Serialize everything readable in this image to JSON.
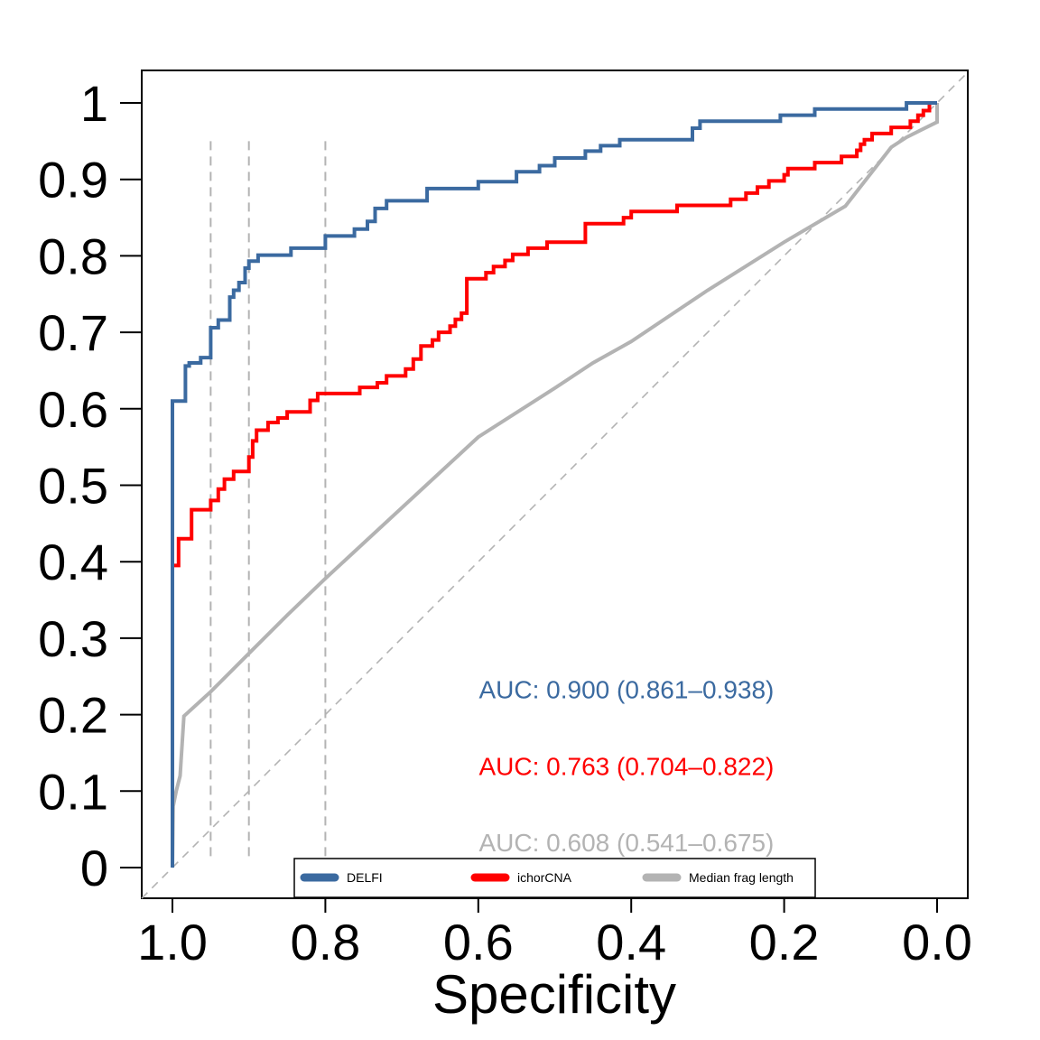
{
  "chart_data": {
    "type": "line",
    "xlabel": "Specificity",
    "ylabel": "",
    "xlim": [
      1.0,
      0.0
    ],
    "ylim": [
      0,
      1
    ],
    "x_reversed": true,
    "x_ticks": [
      1.0,
      0.8,
      0.6,
      0.4,
      0.2,
      0.0
    ],
    "x_tick_labels": [
      "1.0",
      "0.8",
      "0.6",
      "0.4",
      "0.2",
      "0.0"
    ],
    "y_ticks": [
      0,
      0.1,
      0.2,
      0.3,
      0.4,
      0.5,
      0.6,
      0.7,
      0.8,
      0.9,
      1
    ],
    "y_tick_labels": [
      "0",
      "0.1",
      "0.2",
      "0.3",
      "0.4",
      "0.5",
      "0.6",
      "0.7",
      "0.8",
      "0.9",
      "1"
    ],
    "reference_lines": {
      "diagonal": {
        "from": [
          1.0,
          0.0
        ],
        "to": [
          0.0,
          1.0
        ],
        "color": "#b3b3b3",
        "dashed": true
      },
      "vertical": [
        0.95,
        0.9,
        0.8
      ]
    },
    "legend": {
      "placement": "bottom-inside",
      "items": [
        "DELFI",
        "ichorCNA",
        "Median frag length"
      ]
    },
    "series": [
      {
        "name": "DELFI",
        "color": "#3b6aa0",
        "step": true,
        "points": [
          [
            1.0,
            0.0
          ],
          [
            1.0,
            0.61
          ],
          [
            0.983,
            0.61
          ],
          [
            0.983,
            0.656
          ],
          [
            0.978,
            0.656
          ],
          [
            0.978,
            0.66
          ],
          [
            0.963,
            0.66
          ],
          [
            0.963,
            0.667
          ],
          [
            0.95,
            0.667
          ],
          [
            0.95,
            0.706
          ],
          [
            0.94,
            0.706
          ],
          [
            0.94,
            0.716
          ],
          [
            0.925,
            0.716
          ],
          [
            0.925,
            0.746
          ],
          [
            0.92,
            0.746
          ],
          [
            0.92,
            0.755
          ],
          [
            0.913,
            0.755
          ],
          [
            0.913,
            0.765
          ],
          [
            0.905,
            0.765
          ],
          [
            0.905,
            0.784
          ],
          [
            0.9,
            0.784
          ],
          [
            0.9,
            0.793
          ],
          [
            0.888,
            0.793
          ],
          [
            0.888,
            0.801
          ],
          [
            0.845,
            0.801
          ],
          [
            0.845,
            0.81
          ],
          [
            0.8,
            0.81
          ],
          [
            0.8,
            0.826
          ],
          [
            0.762,
            0.826
          ],
          [
            0.762,
            0.835
          ],
          [
            0.745,
            0.835
          ],
          [
            0.745,
            0.845
          ],
          [
            0.735,
            0.845
          ],
          [
            0.735,
            0.862
          ],
          [
            0.72,
            0.862
          ],
          [
            0.72,
            0.872
          ],
          [
            0.667,
            0.872
          ],
          [
            0.667,
            0.888
          ],
          [
            0.6,
            0.888
          ],
          [
            0.6,
            0.897
          ],
          [
            0.55,
            0.897
          ],
          [
            0.55,
            0.91
          ],
          [
            0.52,
            0.91
          ],
          [
            0.52,
            0.918
          ],
          [
            0.5,
            0.918
          ],
          [
            0.5,
            0.928
          ],
          [
            0.46,
            0.928
          ],
          [
            0.46,
            0.937
          ],
          [
            0.44,
            0.937
          ],
          [
            0.44,
            0.944
          ],
          [
            0.415,
            0.944
          ],
          [
            0.415,
            0.952
          ],
          [
            0.32,
            0.952
          ],
          [
            0.32,
            0.967
          ],
          [
            0.31,
            0.967
          ],
          [
            0.31,
            0.976
          ],
          [
            0.205,
            0.976
          ],
          [
            0.205,
            0.984
          ],
          [
            0.16,
            0.984
          ],
          [
            0.16,
            0.992
          ],
          [
            0.04,
            0.992
          ],
          [
            0.04,
            1.0
          ],
          [
            0.0,
            1.0
          ]
        ]
      },
      {
        "name": "ichorCNA",
        "color": "#ff0000",
        "step": true,
        "points": [
          [
            1.0,
            0.0
          ],
          [
            1.0,
            0.395
          ],
          [
            0.992,
            0.395
          ],
          [
            0.992,
            0.43
          ],
          [
            0.975,
            0.43
          ],
          [
            0.975,
            0.468
          ],
          [
            0.95,
            0.468
          ],
          [
            0.95,
            0.48
          ],
          [
            0.94,
            0.48
          ],
          [
            0.94,
            0.495
          ],
          [
            0.932,
            0.495
          ],
          [
            0.932,
            0.508
          ],
          [
            0.92,
            0.508
          ],
          [
            0.92,
            0.518
          ],
          [
            0.9,
            0.518
          ],
          [
            0.9,
            0.537
          ],
          [
            0.895,
            0.537
          ],
          [
            0.895,
            0.558
          ],
          [
            0.89,
            0.558
          ],
          [
            0.89,
            0.572
          ],
          [
            0.875,
            0.572
          ],
          [
            0.875,
            0.582
          ],
          [
            0.862,
            0.582
          ],
          [
            0.862,
            0.588
          ],
          [
            0.85,
            0.588
          ],
          [
            0.85,
            0.596
          ],
          [
            0.82,
            0.596
          ],
          [
            0.82,
            0.611
          ],
          [
            0.81,
            0.611
          ],
          [
            0.81,
            0.62
          ],
          [
            0.755,
            0.62
          ],
          [
            0.755,
            0.628
          ],
          [
            0.732,
            0.628
          ],
          [
            0.732,
            0.634
          ],
          [
            0.72,
            0.634
          ],
          [
            0.72,
            0.643
          ],
          [
            0.695,
            0.643
          ],
          [
            0.695,
            0.652
          ],
          [
            0.685,
            0.652
          ],
          [
            0.685,
            0.665
          ],
          [
            0.675,
            0.665
          ],
          [
            0.675,
            0.682
          ],
          [
            0.66,
            0.682
          ],
          [
            0.66,
            0.69
          ],
          [
            0.652,
            0.69
          ],
          [
            0.652,
            0.7
          ],
          [
            0.637,
            0.7
          ],
          [
            0.637,
            0.708
          ],
          [
            0.63,
            0.708
          ],
          [
            0.63,
            0.717
          ],
          [
            0.622,
            0.717
          ],
          [
            0.622,
            0.725
          ],
          [
            0.615,
            0.725
          ],
          [
            0.615,
            0.77
          ],
          [
            0.59,
            0.77
          ],
          [
            0.59,
            0.778
          ],
          [
            0.58,
            0.778
          ],
          [
            0.58,
            0.786
          ],
          [
            0.565,
            0.786
          ],
          [
            0.565,
            0.794
          ],
          [
            0.555,
            0.794
          ],
          [
            0.555,
            0.802
          ],
          [
            0.535,
            0.802
          ],
          [
            0.535,
            0.81
          ],
          [
            0.51,
            0.81
          ],
          [
            0.51,
            0.818
          ],
          [
            0.46,
            0.818
          ],
          [
            0.46,
            0.842
          ],
          [
            0.41,
            0.842
          ],
          [
            0.41,
            0.85
          ],
          [
            0.4,
            0.85
          ],
          [
            0.4,
            0.858
          ],
          [
            0.34,
            0.858
          ],
          [
            0.34,
            0.866
          ],
          [
            0.27,
            0.866
          ],
          [
            0.27,
            0.874
          ],
          [
            0.25,
            0.874
          ],
          [
            0.25,
            0.882
          ],
          [
            0.235,
            0.882
          ],
          [
            0.235,
            0.89
          ],
          [
            0.22,
            0.89
          ],
          [
            0.22,
            0.898
          ],
          [
            0.2,
            0.898
          ],
          [
            0.2,
            0.906
          ],
          [
            0.195,
            0.906
          ],
          [
            0.195,
            0.914
          ],
          [
            0.16,
            0.914
          ],
          [
            0.16,
            0.922
          ],
          [
            0.125,
            0.922
          ],
          [
            0.125,
            0.93
          ],
          [
            0.105,
            0.93
          ],
          [
            0.105,
            0.938
          ],
          [
            0.1,
            0.938
          ],
          [
            0.1,
            0.946
          ],
          [
            0.095,
            0.946
          ],
          [
            0.095,
            0.952
          ],
          [
            0.085,
            0.952
          ],
          [
            0.085,
            0.96
          ],
          [
            0.06,
            0.96
          ],
          [
            0.06,
            0.968
          ],
          [
            0.035,
            0.968
          ],
          [
            0.035,
            0.976
          ],
          [
            0.025,
            0.976
          ],
          [
            0.025,
            0.984
          ],
          [
            0.018,
            0.984
          ],
          [
            0.018,
            0.99
          ],
          [
            0.01,
            0.99
          ],
          [
            0.01,
            1.0
          ],
          [
            0.0,
            1.0
          ]
        ]
      },
      {
        "name": "Median frag length",
        "color": "#b3b3b3",
        "step": false,
        "points": [
          [
            1.0,
            0.0
          ],
          [
            0.999,
            0.08
          ],
          [
            0.995,
            0.1
          ],
          [
            0.99,
            0.12
          ],
          [
            0.985,
            0.198
          ],
          [
            0.95,
            0.23
          ],
          [
            0.9,
            0.28
          ],
          [
            0.85,
            0.33
          ],
          [
            0.8,
            0.378
          ],
          [
            0.6,
            0.563
          ],
          [
            0.5,
            0.627
          ],
          [
            0.45,
            0.66
          ],
          [
            0.4,
            0.688
          ],
          [
            0.3,
            0.755
          ],
          [
            0.2,
            0.818
          ],
          [
            0.12,
            0.865
          ],
          [
            0.06,
            0.942
          ],
          [
            0.04,
            0.955
          ],
          [
            0.02,
            0.965
          ],
          [
            0.0,
            0.975
          ],
          [
            0.0,
            1.0
          ]
        ]
      }
    ],
    "annotations": [
      {
        "text": "AUC: 0.900 (0.861–0.938)",
        "color": "#3b6aa0",
        "x": 0.5,
        "y": 0.233
      },
      {
        "text": "AUC: 0.763 (0.704–0.822)",
        "color": "#ff0000",
        "x": 0.5,
        "y": 0.133
      },
      {
        "text": "AUC: 0.608 (0.541–0.675)",
        "color": "#b3b3b3",
        "x": 0.5,
        "y": 0.033
      }
    ]
  }
}
